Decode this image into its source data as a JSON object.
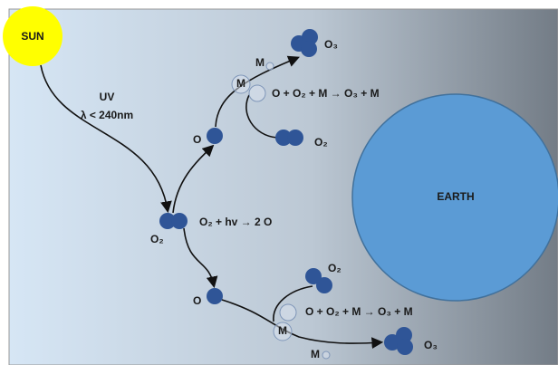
{
  "sun": {
    "label": "SUN"
  },
  "uv": {
    "label": "UV",
    "wavelength": "λ < 240nm"
  },
  "photolysis": {
    "reactant": "O₂",
    "equation": "O₂ + hv → 2 O"
  },
  "upper_branch": {
    "atom": "O",
    "third_body": "M",
    "third_body_small": "M",
    "product": "O₃",
    "equation": "O + O₂ + M → O₃ + M",
    "oxygen": "O₂"
  },
  "lower_branch": {
    "atom": "O",
    "third_body": "M",
    "third_body_small": "M",
    "product": "O₃",
    "equation": "O + O₂ + M → O₃ + M",
    "oxygen": "O₂"
  },
  "earth": {
    "label": "EARTH"
  }
}
